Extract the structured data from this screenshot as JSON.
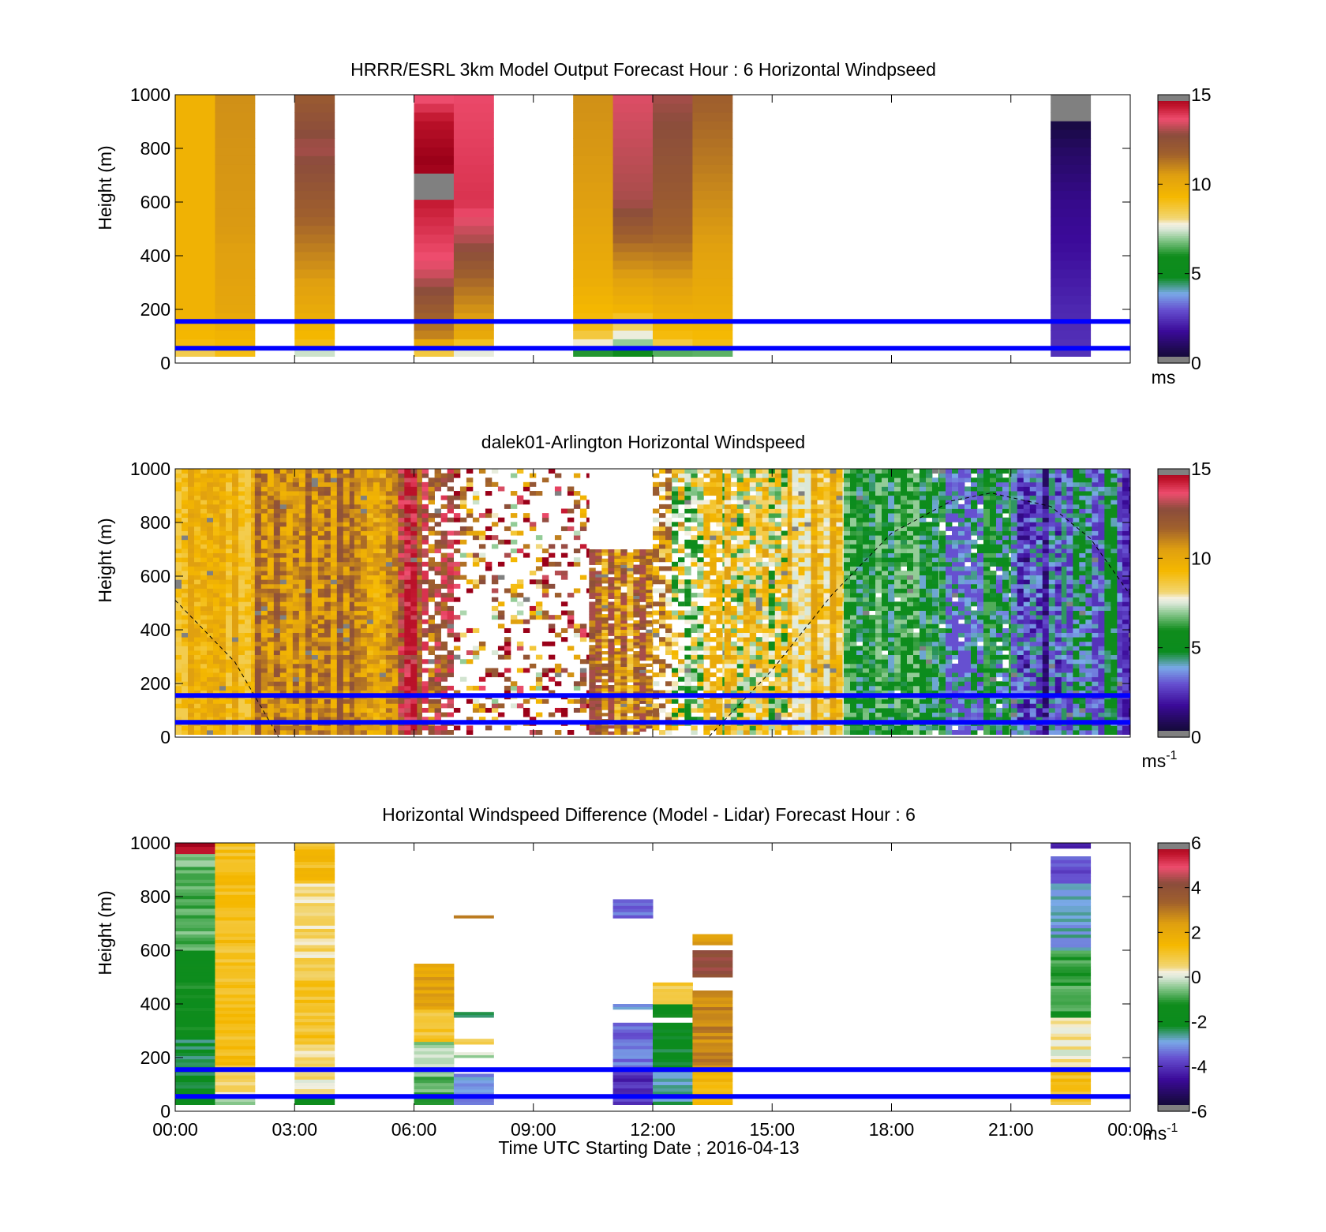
{
  "figure": {
    "xlabel": "Time UTC  Starting Date ; 2016-04-13",
    "x_ticks": [
      "00:00",
      "03:00",
      "06:00",
      "09:00",
      "12:00",
      "15:00",
      "18:00",
      "21:00",
      "00:00"
    ]
  },
  "colors": {
    "reference_line": "#0000ff",
    "missing": "#808080"
  },
  "chart_data": [
    {
      "type": "heatmap",
      "title": "HRRR/ESRL 3km Model Output   Forecast Hour : 6 Horizontal Windpseed",
      "ylabel": "Height (m)",
      "x_range_hours": [
        0,
        24
      ],
      "ylim": [
        0,
        1000
      ],
      "y_ticks": [
        0,
        200,
        400,
        600,
        800,
        1000
      ],
      "reference_lines_m": [
        55,
        155
      ],
      "colorbar": {
        "min": 0,
        "max": 15,
        "ticks": [
          0,
          5,
          10,
          15
        ],
        "unit": "ms"
      },
      "columns": [
        {
          "start_hour": 0.0,
          "end_hour": 1.0,
          "top_m": 1000,
          "bottom_m": 25,
          "profile": [
            [
              25,
              7.5
            ],
            [
              40,
              8.5
            ],
            [
              80,
              9.3
            ],
            [
              200,
              9.6
            ],
            [
              1000,
              9.6
            ]
          ]
        },
        {
          "start_hour": 1.0,
          "end_hour": 2.0,
          "top_m": 1000,
          "bottom_m": 25,
          "profile": [
            [
              25,
              9.0
            ],
            [
              200,
              10.2
            ],
            [
              500,
              10.6
            ],
            [
              1000,
              10.8
            ]
          ]
        },
        {
          "start_hour": 3.0,
          "end_hour": 4.0,
          "top_m": 1000,
          "bottom_m": 25,
          "profile": [
            [
              25,
              6.0
            ],
            [
              60,
              9.0
            ],
            [
              200,
              10.0
            ],
            [
              400,
              11.0
            ],
            [
              600,
              12.0
            ],
            [
              800,
              13.0
            ],
            [
              1000,
              12.0
            ]
          ]
        },
        {
          "start_hour": 6.0,
          "end_hour": 7.0,
          "top_m": 1000,
          "bottom_m": 25,
          "profile": [
            [
              25,
              8.0
            ],
            [
              100,
              11.0
            ],
            [
              200,
              12.0
            ],
            [
              350,
              13.5
            ],
            [
              500,
              14.0
            ],
            [
              650,
              14.5
            ],
            [
              750,
              15.0
            ],
            [
              900,
              14.5
            ],
            [
              1000,
              13.5
            ]
          ],
          "missing_m": [
            [
              600,
              700
            ]
          ]
        },
        {
          "start_hour": 7.0,
          "end_hour": 8.0,
          "top_m": 1000,
          "bottom_m": 25,
          "profile": [
            [
              25,
              7.0
            ],
            [
              100,
              10.0
            ],
            [
              300,
              11.5
            ],
            [
              450,
              13.0
            ],
            [
              600,
              14.0
            ],
            [
              1000,
              13.7
            ]
          ]
        },
        {
          "start_hour": 10.0,
          "end_hour": 11.0,
          "top_m": 1000,
          "bottom_m": 25,
          "profile": [
            [
              25,
              5.0
            ],
            [
              60,
              7.5
            ],
            [
              120,
              9.0
            ],
            [
              300,
              9.8
            ],
            [
              600,
              10.5
            ],
            [
              1000,
              10.8
            ]
          ]
        },
        {
          "start_hour": 11.0,
          "end_hour": 12.0,
          "top_m": 1000,
          "bottom_m": 25,
          "profile": [
            [
              25,
              5.5
            ],
            [
              80,
              7.2
            ],
            [
              200,
              9.5
            ],
            [
              450,
              11.5
            ],
            [
              600,
              13.0
            ],
            [
              1000,
              13.5
            ]
          ]
        },
        {
          "start_hour": 12.0,
          "end_hour": 13.0,
          "top_m": 1000,
          "bottom_m": 25,
          "profile": [
            [
              25,
              5.5
            ],
            [
              80,
              9.0
            ],
            [
              200,
              9.8
            ],
            [
              450,
              11.5
            ],
            [
              600,
              12.0
            ],
            [
              1000,
              13.0
            ]
          ]
        },
        {
          "start_hour": 13.0,
          "end_hour": 14.0,
          "top_m": 1000,
          "bottom_m": 25,
          "profile": [
            [
              25,
              4.5
            ],
            [
              60,
              9.0
            ],
            [
              200,
              9.8
            ],
            [
              450,
              10.5
            ],
            [
              1000,
              11.8
            ]
          ]
        },
        {
          "start_hour": 22.0,
          "end_hour": 23.0,
          "top_m": 1000,
          "bottom_m": 25,
          "profile": [
            [
              25,
              2.5
            ],
            [
              200,
              2.3
            ],
            [
              400,
              1.9
            ],
            [
              600,
              1.6
            ],
            [
              800,
              1.0
            ],
            [
              900,
              0.5
            ]
          ],
          "missing_m": [
            [
              905,
              1000
            ]
          ]
        }
      ]
    },
    {
      "type": "heatmap",
      "title": "dalek01-Arlington  Horizontal Windspeed",
      "ylabel": "Height (m)",
      "x_range_hours": [
        0,
        24
      ],
      "ylim": [
        0,
        1000
      ],
      "y_ticks": [
        0,
        200,
        400,
        600,
        800,
        1000
      ],
      "reference_lines_m": [
        55,
        155
      ],
      "colorbar": {
        "min": 0,
        "max": 15,
        "ticks": [
          0,
          5,
          10,
          15
        ],
        "unit": "ms",
        "unit_exponent": "-1"
      },
      "sun_elevation_curve": {
        "note": "dashed",
        "points": [
          [
            0.0,
            510
          ],
          [
            1.5,
            280
          ],
          [
            2.6,
            0
          ],
          [
            13.4,
            0
          ],
          [
            15.0,
            250
          ],
          [
            16.5,
            530
          ],
          [
            18.0,
            760
          ],
          [
            19.5,
            880
          ],
          [
            20.5,
            910
          ],
          [
            22.0,
            860
          ],
          [
            23.0,
            740
          ],
          [
            24.0,
            530
          ]
        ]
      },
      "segments": [
        {
          "start_hour": 0.0,
          "end_hour": 2.0,
          "speed": [
            8.5,
            10.5
          ],
          "coverage_m": [
            10,
            1000
          ],
          "fill": 1.0
        },
        {
          "start_hour": 2.0,
          "end_hour": 4.5,
          "speed": [
            9.5,
            12.5
          ],
          "coverage_m": [
            10,
            1000
          ],
          "fill": 1.0
        },
        {
          "start_hour": 4.5,
          "end_hour": 5.6,
          "speed": [
            9.0,
            11.5
          ],
          "coverage_m": [
            10,
            1000
          ],
          "fill": 1.0
        },
        {
          "start_hour": 5.6,
          "end_hour": 6.2,
          "speed": [
            11.0,
            14.5
          ],
          "coverage_m": [
            10,
            1000
          ],
          "fill": 1.0
        },
        {
          "start_hour": 6.2,
          "end_hour": 7.0,
          "speed": [
            10.5,
            14.0
          ],
          "coverage_m": [
            10,
            1000
          ],
          "fill": 0.7
        },
        {
          "start_hour": 7.0,
          "end_hour": 10.4,
          "speed": [
            7.0,
            15.0
          ],
          "coverage_m": [
            10,
            1000
          ],
          "fill": 0.28
        },
        {
          "start_hour": 10.4,
          "end_hour": 12.0,
          "speed": [
            8.5,
            13.0
          ],
          "coverage_m": [
            10,
            700
          ],
          "fill": 0.9
        },
        {
          "start_hour": 12.0,
          "end_hour": 12.8,
          "speed": [
            5.5,
            12.0
          ],
          "coverage_m": [
            10,
            1000
          ],
          "fill": 0.6
        },
        {
          "start_hour": 12.8,
          "end_hour": 13.8,
          "speed": [
            6.0,
            10.0
          ],
          "coverage_m": [
            10,
            1000
          ],
          "fill": 0.8
        },
        {
          "start_hour": 13.8,
          "end_hour": 15.5,
          "speed": [
            6.0,
            10.5
          ],
          "coverage_m": [
            10,
            1000
          ],
          "fill": 0.95
        },
        {
          "start_hour": 15.5,
          "end_hour": 16.8,
          "speed": [
            7.5,
            10.5
          ],
          "coverage_m": [
            10,
            1000
          ],
          "fill": 1.0
        },
        {
          "start_hour": 16.8,
          "end_hour": 19.2,
          "speed": [
            4.0,
            7.0
          ],
          "coverage_m": [
            10,
            1000
          ],
          "fill": 0.98
        },
        {
          "start_hour": 19.2,
          "end_hour": 21.0,
          "speed": [
            3.0,
            6.5
          ],
          "coverage_m": [
            10,
            1000
          ],
          "fill": 0.95
        },
        {
          "start_hour": 21.0,
          "end_hour": 22.4,
          "speed": [
            1.0,
            4.5
          ],
          "coverage_m": [
            10,
            1000
          ],
          "fill": 1.0
        },
        {
          "start_hour": 22.4,
          "end_hour": 23.8,
          "speed": [
            2.5,
            6.0
          ],
          "coverage_m": [
            10,
            1000
          ],
          "fill": 1.0
        },
        {
          "start_hour": 23.8,
          "end_hour": 24.0,
          "speed": [
            1.0,
            3.0
          ],
          "coverage_m": [
            10,
            1000
          ],
          "fill": 1.0
        }
      ]
    },
    {
      "type": "heatmap",
      "title": "Horizontal Windspeed Difference (Model - Lidar) Forecast Hour : 6",
      "ylabel": "Height (m)",
      "x_range_hours": [
        0,
        24
      ],
      "ylim": [
        0,
        1000
      ],
      "y_ticks": [
        0,
        200,
        400,
        600,
        800,
        1000
      ],
      "reference_lines_m": [
        55,
        155
      ],
      "colorbar": {
        "min": -6,
        "max": 6,
        "ticks": [
          -6,
          -4,
          -2,
          0,
          2,
          4,
          6
        ],
        "unit": "ms",
        "unit_exponent": "-1"
      },
      "columns": [
        {
          "start_hour": 0.0,
          "end_hour": 1.0,
          "bands": [
            [
              25,
              280,
              -2.2
            ],
            [
              280,
              600,
              -1.4
            ],
            [
              600,
              960,
              -0.7
            ],
            [
              960,
              1000,
              5.6
            ]
          ]
        },
        {
          "start_hour": 1.0,
          "end_hour": 2.0,
          "bands": [
            [
              25,
              60,
              -0.4
            ],
            [
              60,
              160,
              0.6
            ],
            [
              160,
              1000,
              1.2
            ]
          ]
        },
        {
          "start_hour": 3.0,
          "end_hour": 4.0,
          "bands": [
            [
              25,
              60,
              -1.6
            ],
            [
              60,
              250,
              0.4
            ],
            [
              250,
              500,
              1.1
            ],
            [
              500,
              850,
              0.6
            ],
            [
              850,
              1000,
              1.3
            ]
          ]
        },
        {
          "start_hour": 6.0,
          "end_hour": 7.0,
          "bands": [
            [
              25,
              130,
              -0.8
            ],
            [
              130,
              260,
              -0.3
            ],
            [
              260,
              380,
              1.0
            ],
            [
              380,
              550,
              2.2
            ]
          ]
        },
        {
          "start_hour": 7.0,
          "end_hour": 8.0,
          "bands": [
            [
              25,
              140,
              -3.0
            ],
            [
              200,
              220,
              -0.2
            ],
            [
              250,
              270,
              0.8
            ],
            [
              350,
              370,
              -2.6
            ],
            [
              720,
              730,
              2.8
            ]
          ]
        },
        {
          "start_hour": 11.0,
          "end_hour": 12.0,
          "bands": [
            [
              25,
              160,
              -4.0
            ],
            [
              160,
              330,
              -3.3
            ],
            [
              380,
              400,
              -3.0
            ],
            [
              720,
              790,
              -3.3
            ]
          ]
        },
        {
          "start_hour": 12.0,
          "end_hour": 13.0,
          "bands": [
            [
              25,
              160,
              -2.5
            ],
            [
              160,
              330,
              -2.0
            ],
            [
              350,
              400,
              -1.5
            ],
            [
              400,
              480,
              0.8
            ]
          ]
        },
        {
          "start_hour": 13.0,
          "end_hour": 14.0,
          "bands": [
            [
              25,
              160,
              1.5
            ],
            [
              160,
              450,
              2.8
            ],
            [
              500,
              600,
              4.0
            ],
            [
              620,
              660,
              2.5
            ]
          ]
        },
        {
          "start_hour": 22.0,
          "end_hour": 23.0,
          "bands": [
            [
              25,
              160,
              1.2
            ],
            [
              160,
              350,
              0.3
            ],
            [
              350,
              600,
              -1.0
            ],
            [
              600,
              850,
              -2.8
            ],
            [
              850,
              950,
              -3.6
            ],
            [
              980,
              1000,
              -4.0
            ]
          ]
        }
      ]
    }
  ]
}
